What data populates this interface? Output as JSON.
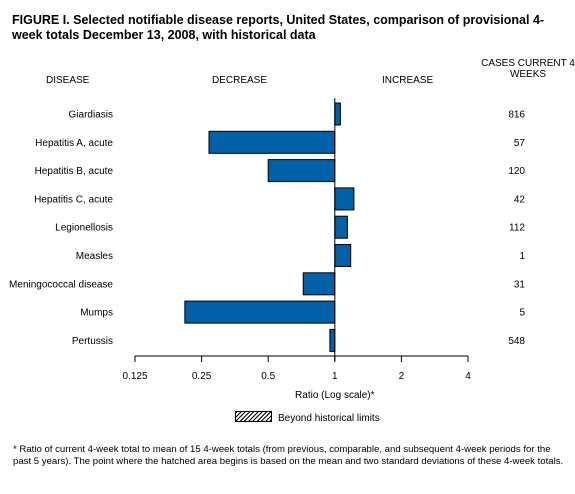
{
  "title": "FIGURE I. Selected notifiable disease reports, United States, comparison of provisional 4-week totals December 13, 2008, with historical data",
  "headers": {
    "disease": "DISEASE",
    "decrease": "DECREASE",
    "increase": "INCREASE",
    "cases": "CASES CURRENT 4 WEEKS"
  },
  "legend": {
    "label": "Beyond historical limits"
  },
  "footnote": "* Ratio of current 4-week total to mean of 15 4-week totals (from previous, comparable, and subsequent 4-week periods for the past 5 years). The point where the hatched area begins is based on the mean and two standard deviations of these 4-week totals.",
  "colors": {
    "bar": "#0060a8",
    "outline": "#000000"
  },
  "chart_data": {
    "type": "bar",
    "orientation": "horizontal",
    "xscale": "log2",
    "categories": [
      "Giardiasis",
      "Hepatitis A, acute",
      "Hepatitis B, acute",
      "Hepatitis C, acute",
      "Legionellosis",
      "Measles",
      "Meningococcal disease",
      "Mumps",
      "Pertussis"
    ],
    "values": [
      1.06,
      0.27,
      0.5,
      1.22,
      1.14,
      1.18,
      0.72,
      0.21,
      0.95
    ],
    "cases": [
      "816",
      "57",
      "120",
      "42",
      "112",
      "1",
      "31",
      "5",
      "548"
    ],
    "xlabel": "Ratio (Log scale)*",
    "xticks": [
      "0.125",
      "0.25",
      "0.5",
      "1",
      "2",
      "4"
    ],
    "xlim": [
      0.125,
      4
    ],
    "reference_line": 1
  }
}
